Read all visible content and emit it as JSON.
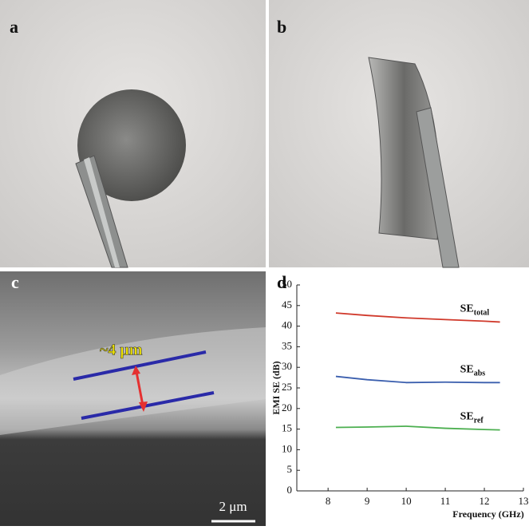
{
  "panels": {
    "a": "a",
    "b": "b",
    "c": "c",
    "d": "d"
  },
  "annotations": {
    "thickness": "~4 μm",
    "scale_bar": "2 μm"
  },
  "chart_data": {
    "type": "line",
    "x_label": "Frequency (GHz)",
    "y_label": "EMI SE (dB)",
    "x": [
      8.2,
      9,
      10,
      11,
      12,
      12.4
    ],
    "series": [
      {
        "name": "SE",
        "subscript": "total",
        "color": "#d0392b",
        "values": [
          43.2,
          42.6,
          42.0,
          41.6,
          41.2,
          41.0
        ]
      },
      {
        "name": "SE",
        "subscript": "abs",
        "color": "#3b5fae",
        "values": [
          27.8,
          27.0,
          26.3,
          26.4,
          26.3,
          26.3
        ]
      },
      {
        "name": "SE",
        "subscript": "ref",
        "color": "#4caf50",
        "values": [
          15.4,
          15.5,
          15.7,
          15.2,
          14.9,
          14.8
        ]
      }
    ],
    "xlim": [
      7.2,
      13
    ],
    "xticks": [
      8,
      9,
      10,
      11,
      12,
      13
    ],
    "ylim": [
      0,
      50
    ],
    "yticks": [
      0,
      5,
      10,
      15,
      20,
      25,
      30,
      35,
      40,
      45,
      50
    ]
  }
}
